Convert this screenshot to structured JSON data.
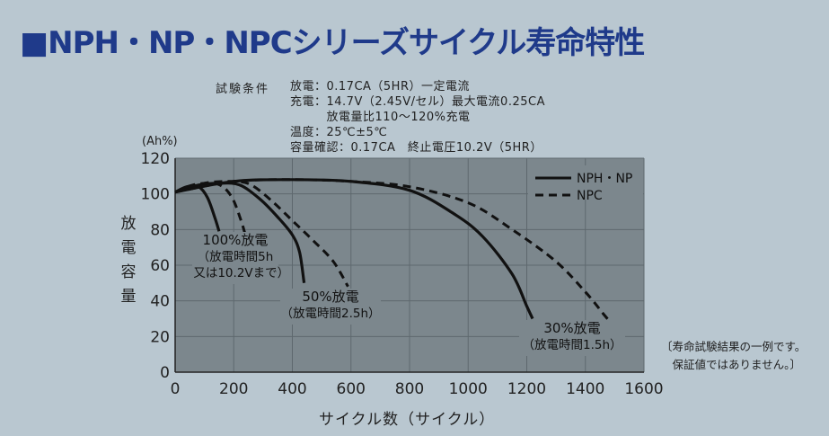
{
  "title": "■NPH・NP・NPCシリーズサイクル寿命特性",
  "conditions": {
    "label": "試験条件",
    "lines": [
      "放電：0.17CA（5HR）一定電流",
      "充電：14.7V（2.45V/セル）最大電流0.25CA",
      "　　　放電量比110～120%充電",
      "温度：25℃±5℃",
      "容量確認：0.17CA　終止電圧10.2V（5HR）"
    ]
  },
  "footnote": [
    "〔寿命試験結果の一例です。",
    "　保証値ではありません。〕"
  ],
  "colors": {
    "background": "#b9c7d0",
    "plot_area": "#7c878d",
    "title": "#1f3a8a",
    "curve": "#111111"
  },
  "chart_data": {
    "type": "line",
    "xlabel": "サイクル数（サイクル）",
    "ylabel": "放電容量",
    "y_unit": "(Ah%)",
    "xlim": [
      0,
      1600
    ],
    "ylim": [
      0,
      120
    ],
    "x_ticks": [
      0,
      200,
      400,
      600,
      800,
      1000,
      1200,
      1400,
      1600
    ],
    "y_ticks": [
      0,
      20,
      40,
      60,
      80,
      100,
      120
    ],
    "grid": true,
    "legend_position": "top-right",
    "legend": [
      {
        "label": "NPH・NP",
        "style": "solid"
      },
      {
        "label": "NPC",
        "style": "dashed"
      }
    ],
    "series": [
      {
        "legend": "NPH・NP",
        "style": "solid",
        "group": "100%",
        "points": [
          [
            0,
            101
          ],
          [
            40,
            104
          ],
          [
            80,
            104
          ],
          [
            110,
            98
          ],
          [
            135,
            87
          ],
          [
            150,
            79
          ]
        ]
      },
      {
        "legend": "NPC",
        "style": "dashed",
        "group": "100%",
        "points": [
          [
            0,
            101
          ],
          [
            60,
            105
          ],
          [
            130,
            106
          ],
          [
            170,
            103
          ],
          [
            200,
            96
          ],
          [
            225,
            85
          ],
          [
            238,
            78
          ]
        ]
      },
      {
        "legend": "NPH・NP",
        "style": "solid",
        "group": "50%",
        "points": [
          [
            0,
            101
          ],
          [
            80,
            105
          ],
          [
            150,
            106
          ],
          [
            220,
            105
          ],
          [
            290,
            97
          ],
          [
            350,
            87
          ],
          [
            400,
            77
          ],
          [
            425,
            67
          ],
          [
            440,
            50
          ]
        ]
      },
      {
        "legend": "NPC",
        "style": "dashed",
        "group": "50%",
        "points": [
          [
            0,
            101
          ],
          [
            100,
            106
          ],
          [
            200,
            107
          ],
          [
            260,
            105
          ],
          [
            330,
            96
          ],
          [
            400,
            85
          ],
          [
            470,
            74
          ],
          [
            540,
            62
          ],
          [
            590,
            48
          ]
        ]
      },
      {
        "legend": "NPH・NP",
        "style": "solid",
        "group": "30%",
        "points": [
          [
            0,
            101
          ],
          [
            200,
            107
          ],
          [
            400,
            108
          ],
          [
            600,
            107
          ],
          [
            800,
            102
          ],
          [
            950,
            89
          ],
          [
            1050,
            76
          ],
          [
            1150,
            55
          ],
          [
            1200,
            37
          ],
          [
            1220,
            30
          ]
        ]
      },
      {
        "legend": "NPC",
        "style": "dashed",
        "group": "30%",
        "points": [
          [
            0,
            101
          ],
          [
            200,
            107
          ],
          [
            400,
            108
          ],
          [
            600,
            107
          ],
          [
            800,
            104
          ],
          [
            1000,
            95
          ],
          [
            1150,
            80
          ],
          [
            1300,
            62
          ],
          [
            1400,
            45
          ],
          [
            1460,
            33
          ],
          [
            1480,
            29
          ]
        ]
      }
    ],
    "annotations": [
      {
        "lines": [
          "100%放電",
          "（放電時間5h",
          "　又は10.2Vまで）"
        ]
      },
      {
        "lines": [
          "50%放電",
          "（放電時間2.5h）"
        ]
      },
      {
        "lines": [
          "30%放電",
          "（放電時間1.5h）"
        ]
      }
    ]
  }
}
